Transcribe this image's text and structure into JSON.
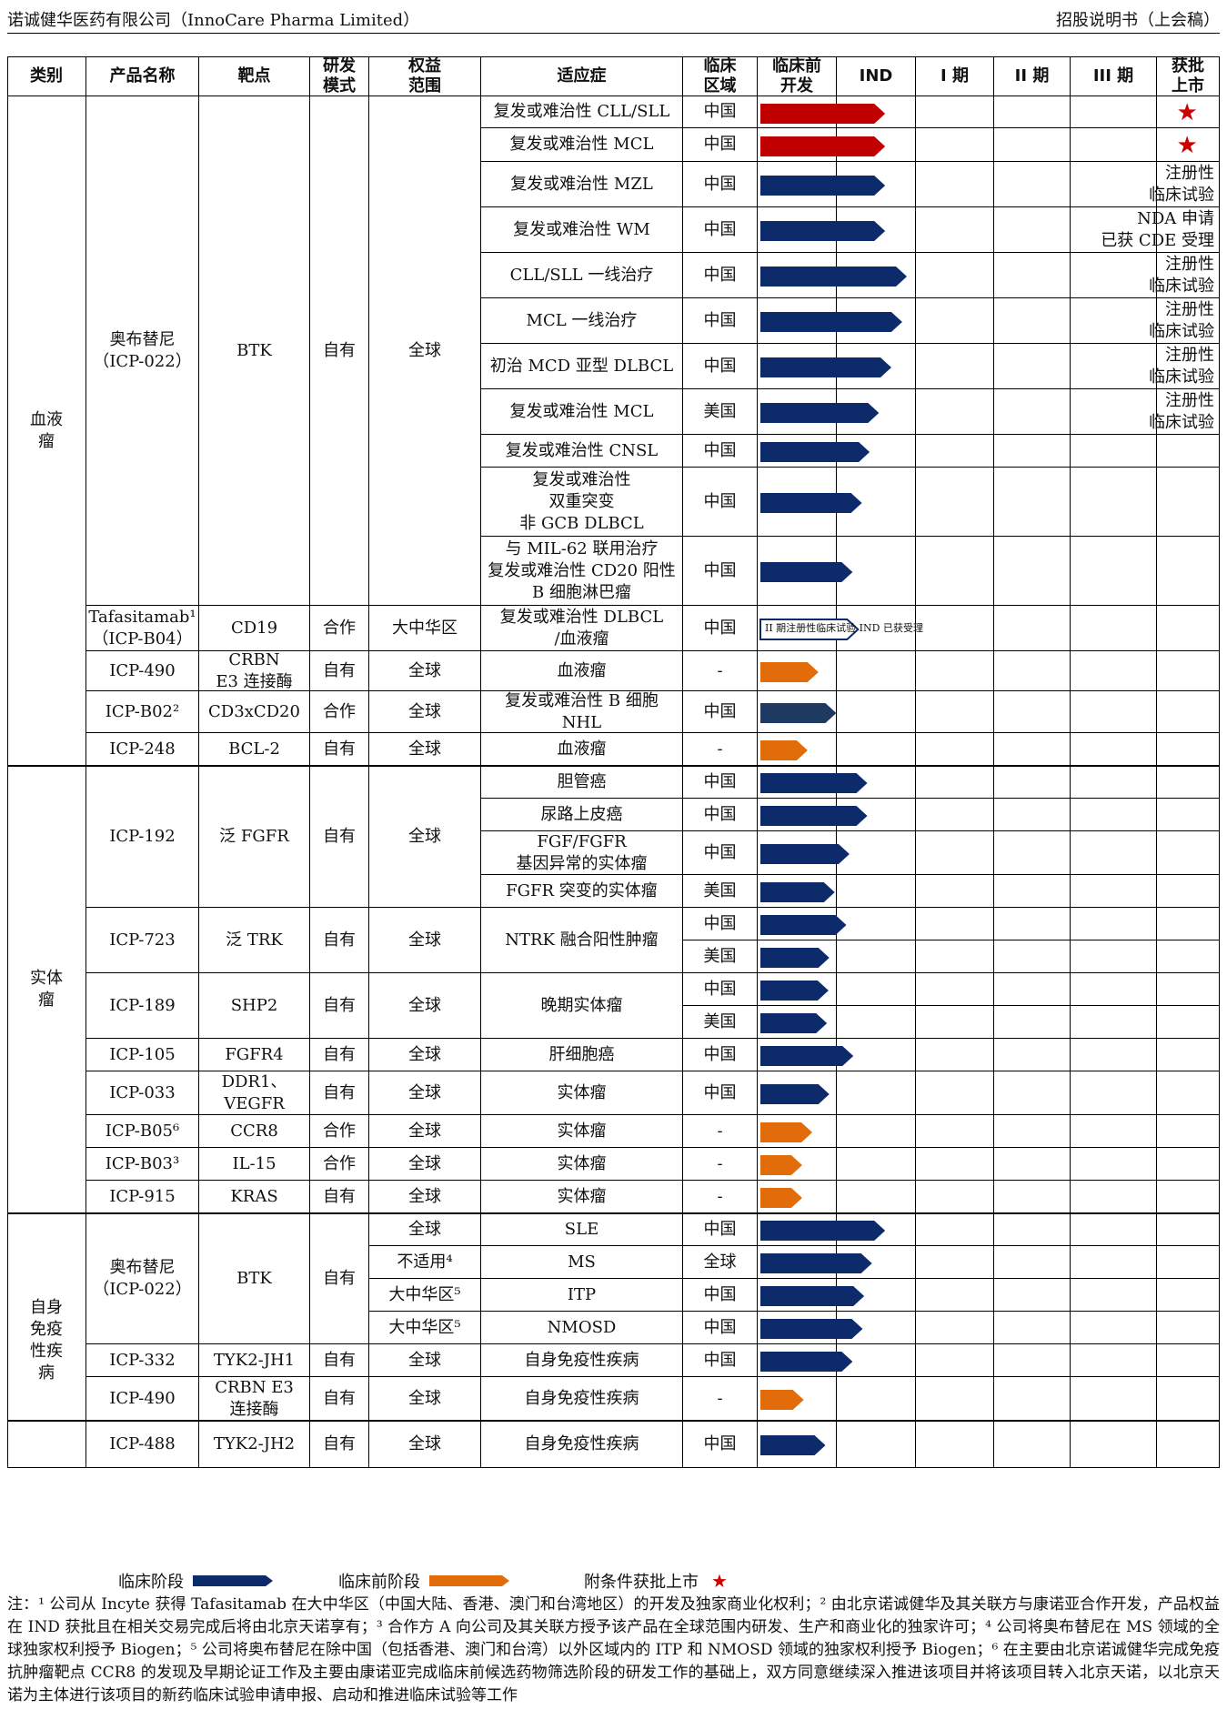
{
  "header": {
    "left": "诺诚健华医药有限公司（InnoCare Pharma Limited）",
    "right": "招股说明书（上会稿）"
  },
  "columns": [
    "类别",
    "产品名称",
    "靶点",
    "研发\n模式",
    "权益\n范围",
    "适应症",
    "临床\n区域",
    "临床前\n开发",
    "IND",
    "I 期",
    "II 期",
    "III 期",
    "获批\n上市"
  ],
  "rows": [
    {
      "indication": "复发或难治性 CLL/SLL",
      "region": "中国",
      "stage": "approved",
      "extent": 1.6,
      "note": "",
      "star": true
    },
    {
      "indication": "复发或难治性 MCL",
      "region": "中国",
      "stage": "approved",
      "extent": 1.6,
      "note": "",
      "star": true
    },
    {
      "indication": "复发或难治性 MZL",
      "region": "中国",
      "stage": "clinical",
      "extent": 1.6,
      "note": "注册性\n临床试验",
      "star": false
    },
    {
      "indication": "复发或难治性 WM",
      "region": "中国",
      "stage": "clinical",
      "extent": 1.6,
      "note": "NDA 申请\n已获 CDE 受理",
      "star": false
    },
    {
      "indication": "CLL/SLL 一线治疗",
      "region": "中国",
      "stage": "clinical",
      "extent": 1.88,
      "note": "注册性\n临床试验",
      "star": false
    },
    {
      "indication": "MCL 一线治疗",
      "region": "中国",
      "stage": "clinical",
      "extent": 1.82,
      "note": "注册性\n临床试验",
      "star": false
    },
    {
      "indication": "初治 MCD 亚型 DLBCL",
      "region": "中国",
      "stage": "clinical",
      "extent": 1.68,
      "note": "注册性\n临床试验",
      "star": false
    },
    {
      "indication": "复发或难治性 MCL",
      "region": "美国",
      "stage": "clinical",
      "extent": 1.52,
      "note": "注册性\n临床试验",
      "star": false
    },
    {
      "indication": "复发或难治性 CNSL",
      "region": "中国",
      "stage": "clinical",
      "extent": 1.4,
      "note": "",
      "star": false
    },
    {
      "indication": "复发或难治性\n双重突变\n非 GCB DLBCL",
      "region": "中国",
      "stage": "clinical",
      "extent": 1.3,
      "note": "",
      "star": false
    },
    {
      "indication": "与 MIL-62 联用治疗\n复发或难治性 CD20 阳性\nB 细胞淋巴瘤",
      "region": "中国",
      "stage": "clinical",
      "extent": 1.18,
      "note": "",
      "star": false
    },
    {
      "indication": "复发或难治性 DLBCL\n/血液瘤",
      "region": "中国",
      "stage": "outline",
      "extent": 1.25,
      "note": "",
      "star": false
    },
    {
      "indication": "血液瘤",
      "region": "-",
      "stage": "preclinical",
      "extent": 0.74,
      "note": "",
      "star": false
    },
    {
      "indication": "复发或难治性 B 细胞\nNHL",
      "region": "中国",
      "stage": "partner",
      "extent": 0.97,
      "note": "",
      "star": false
    },
    {
      "indication": "血液瘤",
      "region": "-",
      "stage": "preclinical",
      "extent": 0.6,
      "note": "",
      "star": false
    },
    {
      "indication": "胆管癌",
      "region": "中国",
      "stage": "clinical",
      "extent": 1.37,
      "note": "",
      "star": false
    },
    {
      "indication": "尿路上皮癌",
      "region": "中国",
      "stage": "clinical",
      "extent": 1.37,
      "note": "",
      "star": false
    },
    {
      "indication": "FGF/FGFR\n基因异常的实体瘤",
      "region": "中国",
      "stage": "clinical",
      "extent": 1.14,
      "note": "",
      "star": false
    },
    {
      "indication": "FGFR 突变的实体瘤",
      "region": "美国",
      "stage": "clinical",
      "extent": 0.95,
      "note": "",
      "star": false
    },
    {
      "indication": "",
      "region": "中国",
      "stage": "clinical",
      "extent": 1.1,
      "note": "",
      "star": false
    },
    {
      "indication": "",
      "region": "美国",
      "stage": "clinical",
      "extent": 0.88,
      "note": "",
      "star": false
    },
    {
      "indication": "",
      "region": "中国",
      "stage": "clinical",
      "extent": 0.87,
      "note": "",
      "star": false
    },
    {
      "indication": "",
      "region": "美国",
      "stage": "clinical",
      "extent": 0.85,
      "note": "",
      "star": false
    },
    {
      "indication": "肝细胞癌",
      "region": "中国",
      "stage": "clinical",
      "extent": 1.19,
      "note": "",
      "star": false
    },
    {
      "indication": "实体瘤",
      "region": "中国",
      "stage": "clinical",
      "extent": 0.88,
      "note": "",
      "star": false
    },
    {
      "indication": "实体瘤",
      "region": "-",
      "stage": "preclinical",
      "extent": 0.66,
      "note": "",
      "star": false
    },
    {
      "indication": "实体瘤",
      "region": "-",
      "stage": "preclinical",
      "extent": 0.53,
      "note": "",
      "star": false
    },
    {
      "indication": "实体瘤",
      "region": "-",
      "stage": "preclinical",
      "extent": 0.53,
      "note": "",
      "star": false
    },
    {
      "indication": "SLE",
      "region": "中国",
      "stage": "clinical",
      "extent": 1.6,
      "note": "",
      "star": false
    },
    {
      "indication": "MS",
      "region": "全球",
      "stage": "clinical",
      "extent": 1.43,
      "note": "",
      "star": false
    },
    {
      "indication": "ITP",
      "region": "中国",
      "stage": "clinical",
      "extent": 1.33,
      "note": "",
      "star": false
    },
    {
      "indication": "NMOSD",
      "region": "中国",
      "stage": "clinical",
      "extent": 1.31,
      "note": "",
      "star": false
    },
    {
      "indication": "自身免疫性疾病",
      "region": "中国",
      "stage": "clinical",
      "extent": 1.18,
      "note": "",
      "star": false
    },
    {
      "indication": "自身免疫性疾病",
      "region": "-",
      "stage": "preclinical",
      "extent": 0.55,
      "note": "",
      "star": false
    },
    {
      "indication": "自身免疫性疾病",
      "region": "中国",
      "stage": "clinical",
      "extent": 0.83,
      "note": "",
      "star": false
    }
  ],
  "groups": {
    "category": [
      {
        "label": "血液\n瘤",
        "from": 0,
        "to": 14
      },
      {
        "label": "实体\n瘤",
        "from": 15,
        "to": 27
      },
      {
        "label": "自身\n免疫\n性疾\n病",
        "from": 28,
        "to": 34
      }
    ],
    "product": [
      {
        "label": "奥布替尼\n（ICP-022）",
        "from": 0,
        "to": 10
      },
      {
        "label": "Tafasitamab¹\n（ICP-B04）",
        "from": 11,
        "to": 11
      },
      {
        "label": "ICP-490",
        "from": 12,
        "to": 12
      },
      {
        "label": "ICP-B02²",
        "from": 13,
        "to": 13
      },
      {
        "label": "ICP-248",
        "from": 14,
        "to": 14
      },
      {
        "label": "ICP-192",
        "from": 15,
        "to": 18
      },
      {
        "label": "ICP-723",
        "from": 19,
        "to": 20
      },
      {
        "label": "ICP-189",
        "from": 21,
        "to": 22
      },
      {
        "label": "ICP-105",
        "from": 23,
        "to": 23
      },
      {
        "label": "ICP-033",
        "from": 24,
        "to": 24
      },
      {
        "label": "ICP-B05⁶",
        "from": 25,
        "to": 25
      },
      {
        "label": "ICP-B03³",
        "from": 26,
        "to": 26
      },
      {
        "label": "ICP-915",
        "from": 27,
        "to": 27
      },
      {
        "label": "奥布替尼\n（ICP-022）",
        "from": 28,
        "to": 31
      },
      {
        "label": "ICP-332",
        "from": 32,
        "to": 32
      },
      {
        "label": "ICP-490",
        "from": 33,
        "to": 33
      },
      {
        "label": "ICP-488",
        "from": 34,
        "to": 34
      }
    ],
    "target": [
      {
        "label": "BTK",
        "from": 0,
        "to": 10
      },
      {
        "label": "CD19",
        "from": 11,
        "to": 11
      },
      {
        "label": "CRBN\nE3 连接酶",
        "from": 12,
        "to": 12
      },
      {
        "label": "CD3xCD20",
        "from": 13,
        "to": 13
      },
      {
        "label": "BCL-2",
        "from": 14,
        "to": 14
      },
      {
        "label": "泛 FGFR",
        "from": 15,
        "to": 18
      },
      {
        "label": "泛 TRK",
        "from": 19,
        "to": 20
      },
      {
        "label": "SHP2",
        "from": 21,
        "to": 22
      },
      {
        "label": "FGFR4",
        "from": 23,
        "to": 23
      },
      {
        "label": "DDR1、\nVEGFR",
        "from": 24,
        "to": 24
      },
      {
        "label": "CCR8",
        "from": 25,
        "to": 25
      },
      {
        "label": "IL-15",
        "from": 26,
        "to": 26
      },
      {
        "label": "KRAS",
        "from": 27,
        "to": 27
      },
      {
        "label": "BTK",
        "from": 28,
        "to": 31
      },
      {
        "label": "TYK2-JH1",
        "from": 32,
        "to": 32
      },
      {
        "label": "CRBN E3\n连接酶",
        "from": 33,
        "to": 33
      },
      {
        "label": "TYK2-JH2",
        "from": 34,
        "to": 34
      }
    ],
    "mode": [
      {
        "label": "自有",
        "from": 0,
        "to": 10
      },
      {
        "label": "合作",
        "from": 11,
        "to": 11
      },
      {
        "label": "自有",
        "from": 12,
        "to": 12
      },
      {
        "label": "合作",
        "from": 13,
        "to": 13
      },
      {
        "label": "自有",
        "from": 14,
        "to": 14
      },
      {
        "label": "自有",
        "from": 15,
        "to": 18
      },
      {
        "label": "自有",
        "from": 19,
        "to": 20
      },
      {
        "label": "自有",
        "from": 21,
        "to": 22
      },
      {
        "label": "自有",
        "from": 23,
        "to": 23
      },
      {
        "label": "自有",
        "from": 24,
        "to": 24
      },
      {
        "label": "合作",
        "from": 25,
        "to": 25
      },
      {
        "label": "合作",
        "from": 26,
        "to": 26
      },
      {
        "label": "自有",
        "from": 27,
        "to": 27
      },
      {
        "label": "自有",
        "from": 28,
        "to": 31
      },
      {
        "label": "自有",
        "from": 32,
        "to": 32
      },
      {
        "label": "自有",
        "from": 33,
        "to": 33
      },
      {
        "label": "自有",
        "from": 34,
        "to": 34
      }
    ],
    "scope": [
      {
        "label": "全球",
        "from": 0,
        "to": 10
      },
      {
        "label": "大中华区",
        "from": 11,
        "to": 11
      },
      {
        "label": "全球",
        "from": 12,
        "to": 12
      },
      {
        "label": "全球",
        "from": 13,
        "to": 13
      },
      {
        "label": "全球",
        "from": 14,
        "to": 14
      },
      {
        "label": "全球",
        "from": 15,
        "to": 18
      },
      {
        "label": "全球",
        "from": 19,
        "to": 20
      },
      {
        "label": "全球",
        "from": 21,
        "to": 22
      },
      {
        "label": "全球",
        "from": 23,
        "to": 23
      },
      {
        "label": "全球",
        "from": 24,
        "to": 24
      },
      {
        "label": "全球",
        "from": 25,
        "to": 25
      },
      {
        "label": "全球",
        "from": 26,
        "to": 26
      },
      {
        "label": "全球",
        "from": 27,
        "to": 27
      },
      {
        "label": "全球",
        "from": 28,
        "to": 28
      },
      {
        "label": "不适用⁴",
        "from": 29,
        "to": 29
      },
      {
        "label": "大中华区⁵",
        "from": 30,
        "to": 30
      },
      {
        "label": "大中华区⁵",
        "from": 31,
        "to": 31
      },
      {
        "label": "全球",
        "from": 32,
        "to": 32
      },
      {
        "label": "全球",
        "from": 33,
        "to": 33
      },
      {
        "label": "全球",
        "from": 34,
        "to": 34
      }
    ],
    "indication_merged": [
      {
        "label": "NTRK 融合阳性肿瘤",
        "from": 19,
        "to": 20
      },
      {
        "label": "晚期实体瘤",
        "from": 21,
        "to": 22
      }
    ]
  },
  "outline_label": "II 期注册性临床试验 IND 已获受理",
  "legend": {
    "clinical": "临床阶段",
    "preclinical": "临床前阶段",
    "approved": "附条件获批上市"
  },
  "colors": {
    "clinical": "#0d2b6b",
    "approved": "#c00000",
    "preclinical": "#e36c0a",
    "partner": "#1f3a60",
    "outline": "#0d2b6b"
  },
  "footnote": "注：¹ 公司从 Incyte 获得 Tafasitamab 在大中华区（中国大陆、香港、澳门和台湾地区）的开发及独家商业化权利；² 由北京诺诚健华及其关联方与康诺亚合作开发，产品权益在 IND 获批且在相关交易完成后将由北京天诺享有；³ 合作方 A 向公司及其关联方授予该产品在全球范围内研发、生产和商业化的独家许可；⁴ 公司将奥布替尼在 MS 领域的全球独家权利授予 Biogen；⁵ 公司将奥布替尼在除中国（包括香港、澳门和台湾）以外区域内的 ITP 和 NMOSD 领域的独家权利授予 Biogen；⁶ 在主要由北京诺诚健华完成免疫抗肿瘤靶点 CCR8 的发现及早期论证工作及主要由康诺亚完成临床前候选药物筛选阶段的研发工作的基础上，双方同意继续深入推进该项目并将该项目转入北京天诺，以北京天诺为主体进行该项目的新药临床试验申请申报、启动和推进临床试验等工作"
}
